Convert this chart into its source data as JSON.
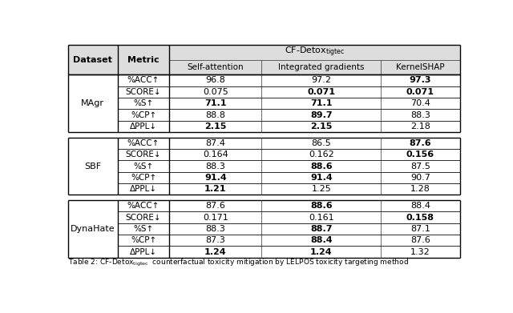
{
  "datasets": [
    "MAgr",
    "SBF",
    "DynaHate"
  ],
  "metrics": [
    "%ACC↑",
    "SCORE↓",
    "%S↑",
    "%CP↑",
    "ΔPPL↓"
  ],
  "cols_data": [
    "Self-attention",
    "Integrated gradients",
    "KernelSHAP"
  ],
  "table_data": {
    "MAgr": {
      "%ACC↑": {
        "Self-attention": "96.8",
        "Integrated gradients": "97.2",
        "KernelSHAP": "97.3"
      },
      "SCORE↓": {
        "Self-attention": "0.075",
        "Integrated gradients": "0.071",
        "KernelSHAP": "0.071"
      },
      "%S↑": {
        "Self-attention": "71.1",
        "Integrated gradients": "71.1",
        "KernelSHAP": "70.4"
      },
      "%CP↑": {
        "Self-attention": "88.8",
        "Integrated gradients": "89.7",
        "KernelSHAP": "88.3"
      },
      "ΔPPL↓": {
        "Self-attention": "2.15",
        "Integrated gradients": "2.15",
        "KernelSHAP": "2.18"
      }
    },
    "SBF": {
      "%ACC↑": {
        "Self-attention": "87.4",
        "Integrated gradients": "86.5",
        "KernelSHAP": "87.6"
      },
      "SCORE↓": {
        "Self-attention": "0.164",
        "Integrated gradients": "0.162",
        "KernelSHAP": "0.156"
      },
      "%S↑": {
        "Self-attention": "88.3",
        "Integrated gradients": "88.6",
        "KernelSHAP": "87.5"
      },
      "%CP↑": {
        "Self-attention": "91.4",
        "Integrated gradients": "91.4",
        "KernelSHAP": "90.7"
      },
      "ΔPPL↓": {
        "Self-attention": "1.21",
        "Integrated gradients": "1.25",
        "KernelSHAP": "1.28"
      }
    },
    "DynaHate": {
      "%ACC↑": {
        "Self-attention": "87.6",
        "Integrated gradients": "88.6",
        "KernelSHAP": "88.4"
      },
      "SCORE↓": {
        "Self-attention": "0.171",
        "Integrated gradients": "0.161",
        "KernelSHAP": "0.158"
      },
      "%S↑": {
        "Self-attention": "88.3",
        "Integrated gradients": "88.7",
        "KernelSHAP": "87.1"
      },
      "%CP↑": {
        "Self-attention": "87.3",
        "Integrated gradients": "88.4",
        "KernelSHAP": "87.6"
      },
      "ΔPPL↓": {
        "Self-attention": "1.24",
        "Integrated gradients": "1.24",
        "KernelSHAP": "1.32"
      }
    }
  },
  "bold_cells": {
    "MAgr": {
      "%ACC↑": {
        "KernelSHAP": true
      },
      "SCORE↓": {
        "Integrated gradients": true,
        "KernelSHAP": true
      },
      "%S↑": {
        "Self-attention": true,
        "Integrated gradients": true
      },
      "%CP↑": {
        "Integrated gradients": true
      },
      "ΔPPL↓": {
        "Self-attention": true,
        "Integrated gradients": true
      }
    },
    "SBF": {
      "%ACC↑": {
        "KernelSHAP": true
      },
      "SCORE↓": {
        "KernelSHAP": true
      },
      "%S↑": {
        "Integrated gradients": true
      },
      "%CP↑": {
        "Self-attention": true,
        "Integrated gradients": true
      },
      "ΔPPL↓": {
        "Self-attention": true
      }
    },
    "DynaHate": {
      "%ACC↑": {
        "Integrated gradients": true
      },
      "SCORE↓": {
        "KernelSHAP": true
      },
      "%S↑": {
        "Integrated gradients": true
      },
      "%CP↑": {
        "Integrated gradients": true
      },
      "ΔPPL↓": {
        "Self-attention": true,
        "Integrated gradients": true
      }
    }
  },
  "header_bg": "#dddddd",
  "font_size": 8.0,
  "caption": "Table 2: CF-Detox",
  "caption_sub": "tigtec",
  "caption_rest": "  counterfactual toxicity mitigation by LELPOS toxicity targeting method"
}
